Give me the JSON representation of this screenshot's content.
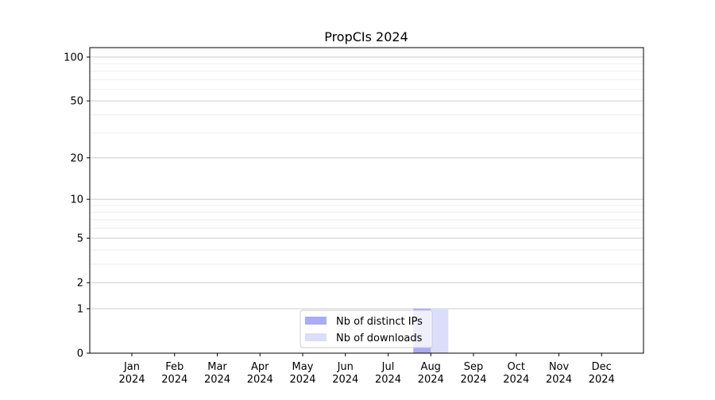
{
  "chart_data": {
    "type": "bar",
    "title": "PropCIs 2024",
    "xlabel": "",
    "ylabel": "",
    "y_scale": "log(1+y)",
    "ylim": [
      0,
      116
    ],
    "y_ticks": [
      0,
      1,
      2,
      5,
      10,
      20,
      50,
      100
    ],
    "y_tick_labels": [
      "0",
      "1",
      "2",
      "5",
      "10",
      "20",
      "50",
      "100"
    ],
    "y_minor_grid": [
      3,
      4,
      6,
      7,
      8,
      9,
      30,
      40,
      60,
      70,
      80,
      90
    ],
    "grid": "horizontal",
    "categories": [
      "Jan\n2024",
      "Feb\n2024",
      "Mar\n2024",
      "Apr\n2024",
      "May\n2024",
      "Jun\n2024",
      "Jul\n2024",
      "Aug\n2024",
      "Sep\n2024",
      "Oct\n2024",
      "Nov\n2024",
      "Dec\n2024"
    ],
    "category_months": [
      "Jan",
      "Feb",
      "Mar",
      "Apr",
      "May",
      "Jun",
      "Jul",
      "Aug",
      "Sep",
      "Oct",
      "Nov",
      "Dec"
    ],
    "category_year": "2024",
    "series": [
      {
        "name": "Nb of distinct IPs",
        "color": "#aaaaf6",
        "values": [
          0,
          0,
          0,
          0,
          0,
          0,
          0,
          1,
          0,
          0,
          0,
          0
        ]
      },
      {
        "name": "Nb of downloads",
        "color": "#dcdcfb",
        "values": [
          0,
          0,
          0,
          0,
          0,
          0,
          0,
          1,
          0,
          0,
          0,
          0
        ]
      }
    ],
    "legend_position": "bottom-center"
  }
}
